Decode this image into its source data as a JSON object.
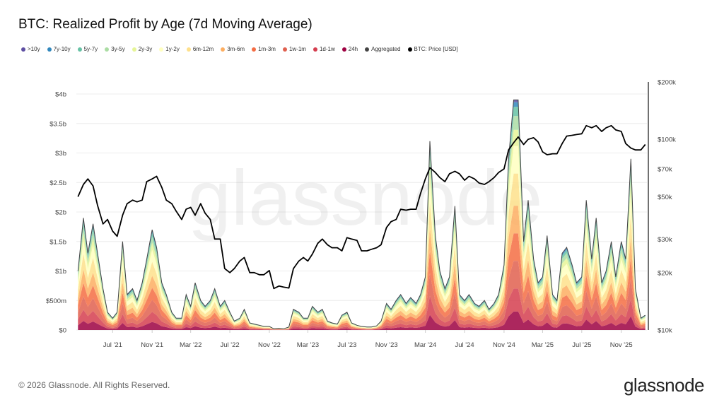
{
  "title": "BTC: Realized Profit by Age (7d Moving Average)",
  "footer": "© 2026 Glassnode. All Rights Reserved.",
  "logo": "glassnode",
  "watermark": "glassnode",
  "legend": [
    {
      "label": ">10y",
      "color": "#5e4fa2"
    },
    {
      "label": "7y-10y",
      "color": "#3288bd"
    },
    {
      "label": "5y-7y",
      "color": "#66c2a5"
    },
    {
      "label": "3y-5y",
      "color": "#abdda4"
    },
    {
      "label": "2y-3y",
      "color": "#e6f598"
    },
    {
      "label": "1y-2y",
      "color": "#ffffbf"
    },
    {
      "label": "6m-12m",
      "color": "#fee08b"
    },
    {
      "label": "3m-6m",
      "color": "#fdae61"
    },
    {
      "label": "1m-3m",
      "color": "#f46d43"
    },
    {
      "label": "1w-1m",
      "color": "#e0604f"
    },
    {
      "label": "1d-1w",
      "color": "#d53e4f"
    },
    {
      "label": "24h",
      "color": "#9e0142"
    },
    {
      "label": "Aggregated",
      "color": "#444444"
    },
    {
      "label": "BTC: Price [USD]",
      "color": "#000000"
    }
  ],
  "chart_data": {
    "type": "area",
    "stacked": true,
    "title": "BTC: Realized Profit by Age (7d Moving Average)",
    "x_ticks": [
      "Jul '21",
      "Nov '21",
      "Mar '22",
      "Jul '22",
      "Nov '22",
      "Mar '23",
      "Jul '23",
      "Nov '23",
      "Mar '24",
      "Jul '24",
      "Nov '24",
      "Mar '25",
      "Jul '25",
      "Nov '25"
    ],
    "x_tick_dates": [
      "2021-07-01",
      "2021-11-01",
      "2022-03-01",
      "2022-07-01",
      "2022-11-01",
      "2023-03-01",
      "2023-07-01",
      "2023-11-01",
      "2024-03-01",
      "2024-07-01",
      "2024-11-01",
      "2025-03-01",
      "2025-07-01",
      "2025-11-01"
    ],
    "xlim": [
      "2021-03-10",
      "2026-01-20"
    ],
    "y_left": {
      "ticks": [
        "$0",
        "$500m",
        "$1b",
        "$1.5b",
        "$2b",
        "$2.5b",
        "$3b",
        "$3.5b",
        "$4b"
      ],
      "tick_values": [
        0,
        0.5,
        1,
        1.5,
        2,
        2.5,
        3,
        3.5,
        4
      ],
      "unit": "USD billions",
      "ylim": [
        0,
        4
      ]
    },
    "y_right": {
      "ticks": [
        "$10k",
        "$20k",
        "$30k",
        "$50k",
        "$70k",
        "$100k",
        "$200k"
      ],
      "tick_values": [
        10,
        20,
        30,
        50,
        70,
        100,
        200
      ],
      "unit": "USD thousands",
      "scale": "log",
      "ylim": [
        10,
        200
      ]
    },
    "grid": true,
    "legend_placement": "top-left",
    "cohort_stack_order": [
      "24h",
      "1d-1w",
      "1w-1m",
      "1m-3m",
      "3m-6m",
      "6m-12m",
      "1y-2y",
      "2y-3y",
      "3y-5y",
      "5y-7y",
      "7y-10y",
      ">10y"
    ],
    "approx_cohort_share": [
      0.08,
      0.1,
      0.12,
      0.12,
      0.12,
      0.14,
      0.12,
      0.07,
      0.06,
      0.04,
      0.02,
      0.01
    ],
    "x": [
      "2021-03-15",
      "2021-04-01",
      "2021-04-15",
      "2021-05-01",
      "2021-05-15",
      "2021-06-01",
      "2021-06-15",
      "2021-07-01",
      "2021-07-15",
      "2021-08-01",
      "2021-08-15",
      "2021-09-01",
      "2021-09-15",
      "2021-10-01",
      "2021-10-15",
      "2021-11-01",
      "2021-11-15",
      "2021-12-01",
      "2021-12-15",
      "2022-01-01",
      "2022-01-15",
      "2022-02-01",
      "2022-02-15",
      "2022-03-01",
      "2022-03-15",
      "2022-04-01",
      "2022-04-15",
      "2022-05-01",
      "2022-05-15",
      "2022-06-01",
      "2022-06-15",
      "2022-07-01",
      "2022-07-15",
      "2022-08-01",
      "2022-08-15",
      "2022-09-01",
      "2022-09-15",
      "2022-10-01",
      "2022-10-15",
      "2022-11-01",
      "2022-11-15",
      "2022-12-01",
      "2022-12-15",
      "2023-01-01",
      "2023-01-15",
      "2023-02-01",
      "2023-02-15",
      "2023-03-01",
      "2023-03-15",
      "2023-04-01",
      "2023-04-15",
      "2023-05-01",
      "2023-05-15",
      "2023-06-01",
      "2023-06-15",
      "2023-07-01",
      "2023-07-15",
      "2023-08-01",
      "2023-08-15",
      "2023-09-01",
      "2023-09-15",
      "2023-10-01",
      "2023-10-15",
      "2023-11-01",
      "2023-11-15",
      "2023-12-01",
      "2023-12-15",
      "2024-01-01",
      "2024-01-15",
      "2024-02-01",
      "2024-02-15",
      "2024-03-01",
      "2024-03-15",
      "2024-04-01",
      "2024-04-15",
      "2024-05-01",
      "2024-05-15",
      "2024-06-01",
      "2024-06-15",
      "2024-07-01",
      "2024-07-15",
      "2024-08-01",
      "2024-08-15",
      "2024-09-01",
      "2024-09-15",
      "2024-10-01",
      "2024-10-15",
      "2024-11-01",
      "2024-11-15",
      "2024-12-01",
      "2024-12-15",
      "2025-01-01",
      "2025-01-15",
      "2025-02-01",
      "2025-02-15",
      "2025-03-01",
      "2025-03-15",
      "2025-04-01",
      "2025-04-15",
      "2025-05-01",
      "2025-05-15",
      "2025-06-01",
      "2025-06-15",
      "2025-07-01",
      "2025-07-15",
      "2025-08-01",
      "2025-08-15",
      "2025-09-01",
      "2025-09-15",
      "2025-10-01",
      "2025-10-15",
      "2025-11-01",
      "2025-11-15",
      "2025-12-01",
      "2025-12-15",
      "2026-01-01",
      "2026-01-15"
    ],
    "aggregated_b": [
      1.0,
      1.9,
      1.3,
      1.8,
      1.3,
      0.7,
      0.3,
      0.2,
      0.3,
      1.5,
      0.6,
      0.7,
      0.5,
      0.8,
      1.2,
      1.7,
      1.4,
      0.8,
      0.6,
      0.3,
      0.2,
      0.2,
      0.6,
      0.4,
      0.8,
      0.5,
      0.4,
      0.5,
      0.7,
      0.4,
      0.5,
      0.3,
      0.15,
      0.2,
      0.35,
      0.12,
      0.1,
      0.08,
      0.06,
      0.06,
      0.02,
      0.03,
      0.02,
      0.05,
      0.35,
      0.3,
      0.2,
      0.2,
      0.4,
      0.3,
      0.35,
      0.15,
      0.12,
      0.1,
      0.25,
      0.3,
      0.12,
      0.08,
      0.06,
      0.05,
      0.05,
      0.07,
      0.15,
      0.45,
      0.35,
      0.5,
      0.6,
      0.45,
      0.55,
      0.45,
      0.6,
      0.9,
      3.2,
      1.6,
      1.0,
      0.7,
      0.9,
      2.1,
      0.6,
      0.5,
      0.6,
      0.45,
      0.4,
      0.5,
      0.35,
      0.45,
      0.6,
      1.1,
      2.9,
      3.9,
      3.9,
      1.5,
      2.2,
      1.2,
      0.8,
      0.9,
      1.6,
      0.6,
      0.5,
      1.3,
      1.4,
      1.1,
      0.8,
      0.9,
      2.2,
      1.2,
      1.9,
      0.8,
      1.0,
      1.5,
      0.9,
      1.5,
      1.2,
      2.9,
      0.7,
      0.2,
      0.25
    ],
    "price_k": [
      50,
      58,
      62,
      57,
      45,
      36,
      38,
      33,
      31,
      40,
      46,
      48,
      47,
      48,
      60,
      62,
      64,
      56,
      48,
      46,
      42,
      38,
      43,
      44,
      40,
      46,
      41,
      38,
      30,
      30,
      21,
      20,
      21,
      23,
      24,
      20,
      20,
      19.5,
      19.5,
      20.5,
      16.5,
      17,
      16.8,
      16.6,
      21,
      23,
      24,
      23,
      25,
      28.5,
      30,
      28,
      27,
      27,
      26,
      30.5,
      30,
      29.5,
      26,
      26,
      26.5,
      27,
      28,
      34.5,
      37,
      38,
      43,
      42.5,
      43,
      43,
      52,
      62,
      71,
      67,
      63,
      60,
      66,
      68,
      66,
      61,
      64,
      62,
      59,
      58,
      60,
      63,
      67,
      70,
      88,
      96,
      103,
      94,
      100,
      102,
      97,
      86,
      83,
      84,
      84,
      95,
      104,
      105,
      106,
      107,
      118,
      115,
      118,
      110,
      115,
      118,
      112,
      110,
      95,
      90,
      88,
      88,
      94
    ]
  }
}
